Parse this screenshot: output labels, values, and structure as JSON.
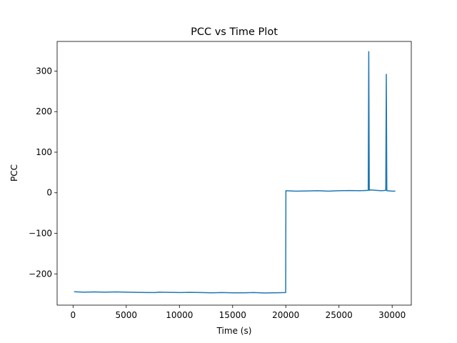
{
  "chart_data": {
    "type": "line",
    "title": "PCC vs Time Plot",
    "xlabel": "Time (s)",
    "ylabel": "PCC",
    "xlim": [
      -1500,
      31800
    ],
    "ylim": [
      -277,
      373
    ],
    "xticks": [
      0,
      5000,
      10000,
      15000,
      20000,
      25000,
      30000
    ],
    "yticks": [
      -200,
      -100,
      0,
      100,
      200,
      300
    ],
    "grid": false,
    "legend": "none",
    "series": [
      {
        "color": "#1f77b4",
        "x": [
          100,
          1000,
          2000,
          3000,
          4000,
          5000,
          6000,
          7000,
          7800,
          8000,
          9000,
          10000,
          11000,
          12000,
          13000,
          14000,
          15000,
          16000,
          17000,
          18000,
          19000,
          19990,
          20010,
          20500,
          21000,
          22000,
          23000,
          24000,
          25000,
          26000,
          27000,
          27750,
          27800,
          27850,
          28000,
          28500,
          29000,
          29400,
          29450,
          29500,
          30000,
          30300
        ],
        "y": [
          -244,
          -245,
          -244.5,
          -245,
          -244.5,
          -245,
          -245.5,
          -246,
          -246,
          -245,
          -245.5,
          -246,
          -245.5,
          -246,
          -246.5,
          -246,
          -246.5,
          -246.5,
          -246,
          -247,
          -246.5,
          -246,
          5,
          4.5,
          4,
          4.5,
          5,
          4,
          5,
          5.5,
          5,
          6,
          348,
          6,
          7,
          6,
          5,
          6,
          292,
          5,
          4,
          4
        ]
      }
    ]
  }
}
